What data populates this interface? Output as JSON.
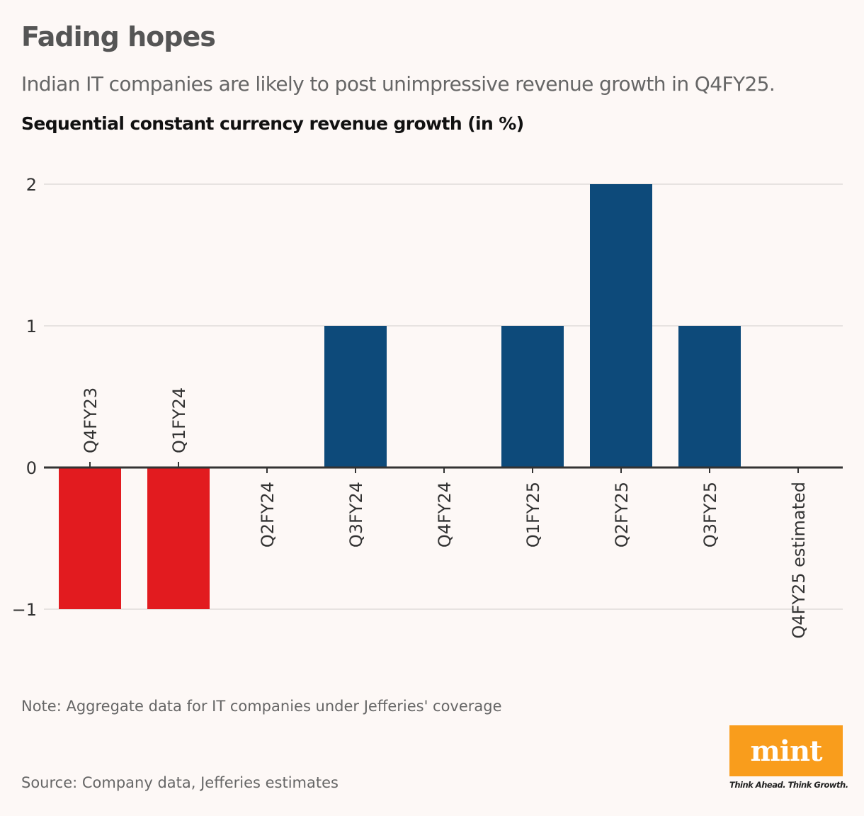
{
  "header": {
    "title": "Fading hopes",
    "subtitle": "Indian IT companies are likely to post unimpressive revenue growth in Q4FY25."
  },
  "chart_data": {
    "type": "bar",
    "title": "Sequential constant currency revenue growth (in %)",
    "categories": [
      "Q4FY23",
      "Q1FY24",
      "Q2FY24",
      "Q3FY24",
      "Q4FY24",
      "Q1FY25",
      "Q2FY25",
      "Q3FY25",
      "Q4FY25 estimated"
    ],
    "values": [
      -1,
      -1,
      0,
      1,
      0,
      1,
      2,
      1,
      0
    ],
    "xlabel": "",
    "ylabel": "",
    "ylim": [
      -1,
      2
    ],
    "yticks": [
      2,
      1,
      0,
      -1
    ],
    "ytick_labels": [
      "2",
      "1",
      "0",
      "−1"
    ],
    "grid": true,
    "colors": {
      "positive": "#0d4a7a",
      "negative": "#e21b1f",
      "zero_line": "#333333",
      "grid": "#e0dcda"
    }
  },
  "footer": {
    "note": "Note: Aggregate data for IT companies under Jefferies' coverage",
    "source": "Source: Company data, Jefferies estimates",
    "logo": "mint",
    "tagline": "Think Ahead. Think Growth."
  }
}
